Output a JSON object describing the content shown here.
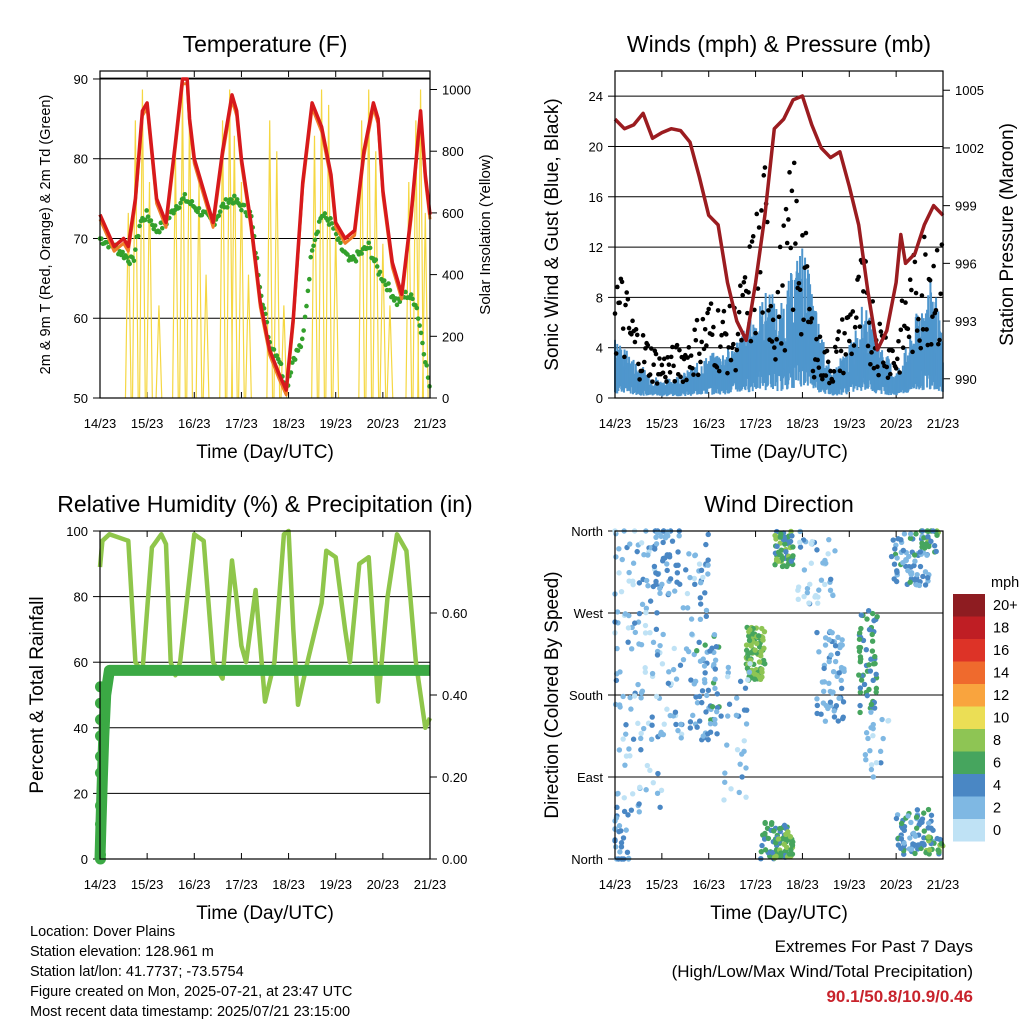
{
  "colors": {
    "t2m": "#d7191c",
    "t9m": "#f07c28",
    "td": "#33a02c",
    "solar": "#f5d742",
    "wind": "#4f96cd",
    "gust": "#000000",
    "pressure": "#9b1c20",
    "rh": "#8fc64b",
    "precip": "#3ba944",
    "extremes": "#c8232c"
  },
  "x_ticks": [
    "14/23",
    "15/23",
    "16/23",
    "17/23",
    "18/23",
    "19/23",
    "20/23",
    "21/23"
  ],
  "chart_data": [
    {
      "type": "line",
      "id": "temperature",
      "title": "Temperature (F)",
      "xlabel": "Time (Day/UTC)",
      "ylabel": "2m & 9m T (Red, Orange) & 2m Td (Green)",
      "y2label": "Solar Insolation (Yellow)",
      "ylim": [
        50,
        91
      ],
      "yticks": [
        "50",
        "60",
        "70",
        "80",
        "90"
      ],
      "y2lim": [
        0,
        1060
      ],
      "y2ticks": [
        "0",
        "200",
        "400",
        "600",
        "800",
        "1000"
      ],
      "grid": true,
      "series": [
        {
          "key": "t2m",
          "style": "line",
          "x": [
            0,
            0.3,
            0.5,
            0.6,
            0.75,
            0.9,
            1.0,
            1.2,
            1.4,
            1.6,
            1.75,
            1.85,
            1.9,
            2.0,
            2.2,
            2.4,
            2.6,
            2.8,
            2.9,
            3.0,
            3.2,
            3.4,
            3.6,
            3.8,
            3.95,
            4.1,
            4.3,
            4.5,
            4.7,
            4.9,
            5.0,
            5.2,
            5.4,
            5.6,
            5.8,
            5.9,
            6.0,
            6.2,
            6.4,
            6.6,
            6.8,
            6.9,
            7.0
          ],
          "y": [
            73,
            69,
            70,
            69,
            75,
            86,
            87,
            75,
            72,
            82,
            90,
            90,
            85,
            80,
            76,
            72,
            81,
            88,
            86,
            80,
            72,
            62,
            56,
            53,
            51,
            60,
            77,
            87,
            84,
            78,
            72,
            70,
            71,
            81,
            87,
            85,
            76,
            67,
            63,
            73,
            86,
            78,
            73
          ]
        },
        {
          "key": "td",
          "style": "dots",
          "x": [
            0,
            0.3,
            0.5,
            0.7,
            0.85,
            1.0,
            1.2,
            1.4,
            1.6,
            1.8,
            2.0,
            2.2,
            2.4,
            2.6,
            2.8,
            3.0,
            3.2,
            3.4,
            3.6,
            3.8,
            3.95,
            4.1,
            4.3,
            4.5,
            4.7,
            4.9,
            5.1,
            5.3,
            5.5,
            5.7,
            5.9,
            6.1,
            6.3,
            6.5,
            6.7,
            6.9,
            7.0
          ],
          "y": [
            70,
            69,
            68,
            67,
            72,
            73,
            71,
            72,
            74,
            75,
            74,
            73,
            72,
            74,
            75,
            74,
            73,
            64,
            57,
            55,
            51,
            55,
            57,
            69,
            73,
            72,
            69,
            67,
            68,
            69,
            66,
            64,
            62,
            63,
            62,
            55,
            51
          ]
        },
        {
          "key": "solar",
          "style": "spikes",
          "x": [
            0.6,
            0.75,
            0.9,
            1.05,
            1.25,
            1.6,
            1.75,
            1.9,
            2.1,
            2.25,
            2.6,
            2.75,
            2.85,
            3.0,
            3.15,
            3.6,
            3.75,
            3.9,
            4.55,
            4.7,
            4.85,
            5.0,
            5.55,
            5.7,
            5.85,
            6.0,
            6.15,
            6.55,
            6.7,
            6.8,
            6.9
          ],
          "y": [
            600,
            900,
            1000,
            700,
            300,
            800,
            1000,
            950,
            700,
            400,
            900,
            1000,
            850,
            700,
            400,
            900,
            800,
            300,
            850,
            1000,
            950,
            550,
            900,
            1000,
            800,
            500,
            300,
            700,
            900,
            1000,
            600
          ]
        }
      ]
    },
    {
      "type": "scatter",
      "id": "winds",
      "title": "Winds (mph) & Pressure (mb)",
      "xlabel": "Time (Day/UTC)",
      "ylabel": "Sonic Wind & Gust (Blue, Black)",
      "y2label": "Station Pressure (Maroon)",
      "ylim": [
        0,
        26
      ],
      "yticks": [
        "0",
        "4",
        "8",
        "12",
        "16",
        "20",
        "24"
      ],
      "y2lim": [
        989,
        1006
      ],
      "y2ticks": [
        "990",
        "993",
        "996",
        "999",
        "1002",
        "1005"
      ],
      "grid": true,
      "series": [
        {
          "key": "pressure",
          "style": "line",
          "x": [
            0,
            0.2,
            0.4,
            0.6,
            0.8,
            1.0,
            1.2,
            1.4,
            1.6,
            1.8,
            2.0,
            2.2,
            2.4,
            2.6,
            2.8,
            3.0,
            3.2,
            3.4,
            3.6,
            3.8,
            4.0,
            4.2,
            4.4,
            4.6,
            4.8,
            5.0,
            5.2,
            5.4,
            5.6,
            5.8,
            6.0,
            6.1,
            6.2,
            6.4,
            6.6,
            6.8,
            7.0
          ],
          "y": [
            1003.5,
            1003.0,
            1003.2,
            1003.8,
            1002.5,
            1002.8,
            1003.0,
            1002.9,
            1002.3,
            1000.5,
            998.5,
            998.0,
            995.0,
            993.0,
            992.0,
            995.0,
            998.5,
            1003.0,
            1003.5,
            1004.5,
            1004.7,
            1003.2,
            1002.0,
            1001.5,
            1001.8,
            1000.0,
            998.0,
            994.5,
            991.5,
            992.5,
            995.0,
            997.5,
            996.0,
            996.5,
            998.0,
            999.0,
            998.5
          ]
        },
        {
          "key": "wind",
          "style": "band",
          "x": [
            0,
            0.5,
            1.0,
            1.5,
            2.0,
            2.5,
            3.0,
            3.3,
            3.5,
            3.8,
            4.0,
            4.3,
            4.6,
            5.0,
            5.3,
            5.6,
            6.0,
            6.3,
            6.5,
            6.8,
            7.0
          ],
          "y": [
            3.5,
            2.0,
            1.0,
            1.5,
            2.5,
            3.0,
            5.0,
            6.5,
            5.0,
            7.5,
            9.0,
            5.0,
            1.5,
            3.0,
            5.5,
            3.5,
            1.5,
            3.5,
            5.5,
            7.0,
            3.0
          ]
        },
        {
          "key": "gust",
          "style": "dots",
          "x": [
            0,
            0.5,
            1.0,
            1.5,
            2.0,
            2.5,
            2.8,
            3.0,
            3.2,
            3.4,
            3.6,
            3.8,
            4.0,
            4.2,
            4.4,
            4.6,
            5.0,
            5.3,
            5.6,
            6.0,
            6.2,
            6.4,
            6.6,
            6.8,
            7.0
          ],
          "y": [
            10,
            5,
            3,
            4,
            7,
            6,
            9,
            13,
            16,
            8,
            12,
            17,
            14,
            6,
            4,
            3,
            7,
            10,
            6,
            4,
            8,
            10,
            12,
            14,
            10
          ]
        }
      ]
    },
    {
      "type": "line",
      "id": "humidity",
      "title": "Relative Humidity (%) & Precipitation (in)",
      "xlabel": "Time (Day/UTC)",
      "ylabel": "Percent & Total Rainfall",
      "ylim": [
        0,
        100
      ],
      "yticks": [
        "0",
        "20",
        "40",
        "60",
        "80",
        "100"
      ],
      "y2lim": [
        0,
        0.8
      ],
      "y2ticks": [
        "0.00",
        "0.20",
        "0.40",
        "0.60"
      ],
      "grid": true,
      "series": [
        {
          "key": "rh",
          "style": "line",
          "x": [
            0,
            0.05,
            0.2,
            0.6,
            0.75,
            0.9,
            1.1,
            1.3,
            1.4,
            1.5,
            1.6,
            1.7,
            2.0,
            2.2,
            2.4,
            2.6,
            2.8,
            2.9,
            3.0,
            3.1,
            3.3,
            3.5,
            3.7,
            3.9,
            4.0,
            4.1,
            4.2,
            4.4,
            4.7,
            4.8,
            5.0,
            5.2,
            5.3,
            5.5,
            5.7,
            5.9,
            6.1,
            6.3,
            6.5,
            6.7,
            6.9,
            7.0
          ],
          "y": [
            89,
            97,
            99,
            97,
            60,
            57,
            95,
            99,
            96,
            60,
            56,
            60,
            99,
            97,
            60,
            55,
            91,
            79,
            65,
            60,
            82,
            48,
            60,
            99,
            100,
            70,
            47,
            60,
            78,
            94,
            92,
            70,
            60,
            90,
            92,
            48,
            80,
            99,
            94,
            60,
            40,
            43
          ]
        },
        {
          "key": "precip",
          "style": "line",
          "x": [
            0,
            0.02,
            0.05,
            0.08,
            0.12,
            0.2,
            1,
            2,
            3,
            4,
            5,
            6,
            7
          ],
          "y": [
            0.0,
            0.08,
            0.2,
            0.3,
            0.4,
            0.46,
            0.46,
            0.46,
            0.46,
            0.46,
            0.46,
            0.46,
            0.46
          ]
        }
      ]
    },
    {
      "type": "scatter",
      "id": "direction",
      "title": "Wind Direction",
      "xlabel": "Time (Day/UTC)",
      "ylabel": "Direction (Colored By Speed)",
      "ylim": [
        0,
        360
      ],
      "yticks": [
        "North",
        "East",
        "South",
        "West",
        "North"
      ],
      "legend_title": "mph",
      "legend_labels": [
        "20+",
        "18",
        "16",
        "14",
        "12",
        "10",
        "8",
        "6",
        "4",
        "2",
        "0"
      ],
      "legend_colors": [
        "#8e1c21",
        "#bf1e24",
        "#dd3327",
        "#ef6a2d",
        "#f9a43e",
        "#ebde55",
        "#8ec554",
        "#46a55e",
        "#4a87c4",
        "#7fb8e3",
        "#bfe2f5"
      ],
      "legend_position": "right"
    }
  ],
  "info": {
    "location": "Location: Dover Plains",
    "elevation": "Station elevation: 128.961 m",
    "latlon": "Station lat/lon: 41.7737; -73.5754",
    "created": "Figure created on Mon, 2025-07-21, at 23:47 UTC",
    "timestamp": "Most recent data timestamp: 2025/07/21 23:15:00"
  },
  "extremes": {
    "title": "Extremes For Past 7 Days",
    "subtitle": "(High/Low/Max Wind/Total Precipitation)",
    "values": "90.1/50.8/10.9/0.46"
  }
}
